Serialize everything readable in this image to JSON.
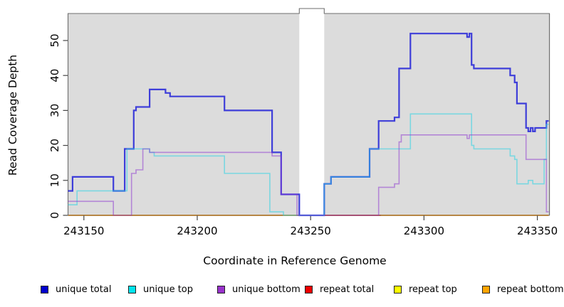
{
  "figure": {
    "x_title": "Coordinate in Reference Genome",
    "y_title": "Read Coverage Depth"
  },
  "chart_data": {
    "type": "line",
    "subtype": "step",
    "title": "",
    "xlabel": "Coordinate in Reference Genome",
    "ylabel": "Read Coverage Depth",
    "x_axis": {
      "range": [
        243143,
        243355
      ],
      "ticks": [
        243150,
        243200,
        243250,
        243300,
        243350
      ],
      "tick_labels": [
        "243150",
        "243200",
        "243250",
        "243300",
        "243350"
      ]
    },
    "y_axis": {
      "range": [
        0,
        57.5
      ],
      "ticks": [
        0,
        10,
        20,
        30,
        40,
        50
      ],
      "tick_labels": [
        "0",
        "10",
        "20",
        "30",
        "40",
        "50"
      ]
    },
    "grid": false,
    "panel_background": "#dcdcdc",
    "gap_band": {
      "from": 243245,
      "to": 243256,
      "color": "#ffffff"
    },
    "series": [
      {
        "name": "unique total",
        "color": "#3030d8",
        "opacity": 0.92,
        "width": 2.2,
        "points": [
          [
            243143,
            7
          ],
          [
            243145,
            11
          ],
          [
            243163,
            7
          ],
          [
            243168,
            19
          ],
          [
            243172,
            30
          ],
          [
            243173,
            31
          ],
          [
            243179,
            36
          ],
          [
            243186,
            35
          ],
          [
            243188,
            34
          ],
          [
            243212,
            30
          ],
          [
            243233,
            18
          ],
          [
            243237,
            6
          ],
          [
            243245,
            0
          ],
          [
            243256,
            9
          ],
          [
            243259,
            11
          ],
          [
            243276,
            19
          ],
          [
            243280,
            27
          ],
          [
            243287,
            28
          ],
          [
            243289,
            42
          ],
          [
            243294,
            52
          ],
          [
            243319,
            51
          ],
          [
            243320,
            52
          ],
          [
            243321,
            43
          ],
          [
            243322,
            42
          ],
          [
            243338,
            40
          ],
          [
            243340,
            38
          ],
          [
            243341,
            32
          ],
          [
            243345,
            25
          ],
          [
            243346,
            24
          ],
          [
            243347,
            25
          ],
          [
            243348,
            24
          ],
          [
            243349,
            25
          ],
          [
            243354,
            27
          ]
        ]
      },
      {
        "name": "unique top",
        "color": "#2ad4e6",
        "opacity": 0.55,
        "width": 1.6,
        "points": [
          [
            243143,
            3
          ],
          [
            243147,
            7
          ],
          [
            243169,
            19
          ],
          [
            243179,
            18
          ],
          [
            243181,
            17
          ],
          [
            243212,
            12
          ],
          [
            243232,
            1
          ],
          [
            243238,
            0
          ],
          [
            243256,
            9
          ],
          [
            243259,
            11
          ],
          [
            243276,
            19
          ],
          [
            243294,
            29
          ],
          [
            243321,
            20
          ],
          [
            243322,
            19
          ],
          [
            243338,
            17
          ],
          [
            243340,
            16
          ],
          [
            243341,
            9
          ],
          [
            243346,
            10
          ],
          [
            243348,
            9
          ],
          [
            243353,
            16
          ],
          [
            243354,
            26
          ]
        ]
      },
      {
        "name": "unique bottom",
        "color": "#8a2fd0",
        "opacity": 0.5,
        "width": 1.6,
        "points": [
          [
            243143,
            4
          ],
          [
            243163,
            0
          ],
          [
            243171,
            12
          ],
          [
            243173,
            13
          ],
          [
            243176,
            19
          ],
          [
            243179,
            18
          ],
          [
            243233,
            17
          ],
          [
            243237,
            6
          ],
          [
            243244,
            0
          ],
          [
            243280,
            8
          ],
          [
            243287,
            9
          ],
          [
            243289,
            21
          ],
          [
            243290,
            23
          ],
          [
            243319,
            22
          ],
          [
            243320,
            23
          ],
          [
            243345,
            16
          ],
          [
            243354,
            1
          ]
        ]
      },
      {
        "name": "repeat total",
        "color": "#d02020",
        "opacity": 1,
        "width": 1.6,
        "points": [
          [
            243143,
            0
          ]
        ]
      },
      {
        "name": "repeat top",
        "color": "#e8e800",
        "opacity": 1,
        "width": 1.6,
        "points": [
          [
            243143,
            0
          ]
        ]
      },
      {
        "name": "repeat bottom",
        "color": "#ff9e1b",
        "opacity": 1,
        "width": 2.1,
        "points": [
          [
            243143,
            0
          ]
        ]
      }
    ],
    "zero_line_visible_overlays": [
      {
        "series": "repeat total",
        "from": 243256,
        "to": 243281,
        "color": "#d02020"
      }
    ],
    "legend_position": "bottom",
    "legend": {
      "items": [
        {
          "label": "unique total",
          "color": "#0000cd"
        },
        {
          "label": "unique top",
          "color": "#00e5ee"
        },
        {
          "label": "unique bottom",
          "color": "#9932cc"
        },
        {
          "label": "repeat total",
          "color": "#ee0000"
        },
        {
          "label": "repeat top",
          "color": "#ffff00"
        },
        {
          "label": "repeat bottom",
          "color": "#ffa500"
        }
      ],
      "item_x": [
        57,
        180,
        305,
        428,
        553,
        677
      ]
    }
  }
}
